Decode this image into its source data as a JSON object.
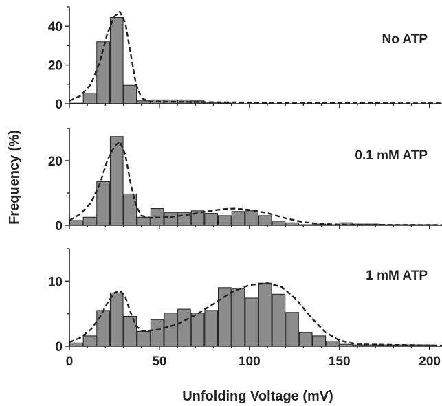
{
  "chart_data": {
    "type": "bar",
    "xlabel": "Unfolding Voltage (mV)",
    "ylabel": "Frequency (%)",
    "xlim": [
      0,
      207
    ],
    "x_ticks": [
      0,
      50,
      100,
      150,
      200
    ],
    "bin_width": 7.5,
    "bar_color": "#8c8c8c",
    "fit_line_style": "dashed",
    "panels": [
      {
        "label": "No ATP",
        "ylim": [
          0,
          50
        ],
        "y_ticks": [
          0,
          20,
          40
        ],
        "bins": [
          3.75,
          11.25,
          18.75,
          26.25,
          33.75,
          41.25,
          48.75,
          56.25,
          63.75,
          71.25,
          78.75,
          86.25
        ],
        "values": [
          0.3,
          5.5,
          32,
          44.5,
          9.5,
          1.5,
          2,
          2,
          2,
          1.5,
          0.7,
          0.4
        ],
        "fit": [
          [
            0,
            1.5
          ],
          [
            6,
            4
          ],
          [
            12,
            10
          ],
          [
            17,
            22
          ],
          [
            21,
            36
          ],
          [
            25,
            45
          ],
          [
            28,
            47.5
          ],
          [
            31,
            42
          ],
          [
            34,
            26
          ],
          [
            37,
            10
          ],
          [
            40,
            3
          ],
          [
            44,
            1.2
          ],
          [
            60,
            1
          ],
          [
            80,
            0.8
          ],
          [
            120,
            0.5
          ],
          [
            160,
            0.3
          ],
          [
            207,
            0.2
          ]
        ]
      },
      {
        "label": "0.1 mM ATP",
        "ylim": [
          0,
          30
        ],
        "y_ticks": [
          0,
          20
        ],
        "bins": [
          3.75,
          11.25,
          18.75,
          26.25,
          33.75,
          41.25,
          48.75,
          56.25,
          63.75,
          71.25,
          78.75,
          86.25,
          93.75,
          101.25,
          108.75,
          116.25,
          123.75,
          131.25,
          138.75,
          146.25,
          153.75,
          161.25,
          168.75,
          176.25,
          183.75,
          191.25,
          198.75
        ],
        "values": [
          1.5,
          2.5,
          13.5,
          27.5,
          9.7,
          2.5,
          5.2,
          4,
          4,
          4.5,
          3.7,
          3,
          4.3,
          4.5,
          3,
          1.3,
          0.8,
          0.2,
          0.4,
          0.2,
          0.8,
          0.4,
          0.4,
          0.2,
          0.2,
          0.2,
          0.2
        ],
        "fit": [
          [
            0,
            1.5
          ],
          [
            6,
            3.5
          ],
          [
            12,
            7
          ],
          [
            17,
            13
          ],
          [
            21,
            20
          ],
          [
            25,
            24.5
          ],
          [
            28,
            26
          ],
          [
            31,
            22
          ],
          [
            34,
            13
          ],
          [
            37,
            6
          ],
          [
            40,
            3
          ],
          [
            45,
            2.3
          ],
          [
            55,
            2.5
          ],
          [
            65,
            3.2
          ],
          [
            75,
            4.2
          ],
          [
            85,
            5
          ],
          [
            92,
            5.2
          ],
          [
            100,
            4.8
          ],
          [
            110,
            3.8
          ],
          [
            120,
            2.2
          ],
          [
            130,
            1
          ],
          [
            140,
            0.4
          ],
          [
            155,
            0.2
          ],
          [
            207,
            0.1
          ]
        ]
      },
      {
        "label": "1 mM ATP",
        "ylim": [
          0,
          15
        ],
        "y_ticks": [
          0,
          10
        ],
        "bins": [
          3.75,
          11.25,
          18.75,
          26.25,
          33.75,
          41.25,
          48.75,
          56.25,
          63.75,
          71.25,
          78.75,
          86.25,
          93.75,
          101.25,
          108.75,
          116.25,
          123.75,
          131.25,
          138.75,
          146.25,
          153.75,
          161.25,
          168.75,
          176.25,
          183.75,
          191.25,
          198.75
        ],
        "values": [
          0.5,
          1.6,
          5.5,
          8.2,
          4.6,
          2.3,
          4.1,
          5.1,
          5.7,
          5.1,
          5.5,
          9,
          8.9,
          7.4,
          9.7,
          8,
          5.2,
          2.1,
          1.6,
          0.8,
          0.3,
          0.2,
          0.2,
          0.2,
          0.2,
          0.2,
          0.2
        ],
        "fit": [
          [
            0,
            0.6
          ],
          [
            6,
            1.3
          ],
          [
            12,
            2.6
          ],
          [
            17,
            4.5
          ],
          [
            21,
            6.6
          ],
          [
            25,
            8.2
          ],
          [
            28,
            8.6
          ],
          [
            31,
            7.6
          ],
          [
            34,
            5.2
          ],
          [
            37,
            3.1
          ],
          [
            41,
            2.3
          ],
          [
            50,
            2.6
          ],
          [
            60,
            3.4
          ],
          [
            70,
            4.8
          ],
          [
            80,
            6.5
          ],
          [
            90,
            8.3
          ],
          [
            100,
            9.4
          ],
          [
            110,
            9.7
          ],
          [
            118,
            9.1
          ],
          [
            126,
            7.2
          ],
          [
            134,
            4.5
          ],
          [
            142,
            2.2
          ],
          [
            150,
            0.9
          ],
          [
            160,
            0.3
          ],
          [
            207,
            0.1
          ]
        ]
      }
    ]
  }
}
